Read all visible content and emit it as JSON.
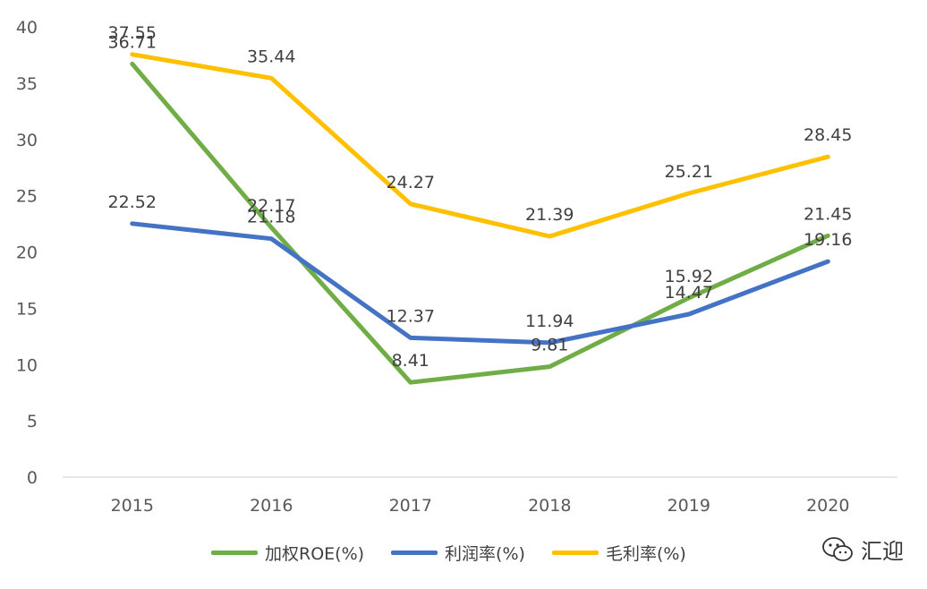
{
  "chart_data": {
    "type": "line",
    "x": [
      "2015",
      "2016",
      "2017",
      "2018",
      "2019",
      "2020"
    ],
    "ylim": [
      0,
      40
    ],
    "yticks": [
      0,
      5,
      10,
      15,
      20,
      25,
      30,
      35,
      40
    ],
    "grid": false,
    "legend_position": "bottom",
    "series": [
      {
        "name": "加权ROE(%)",
        "color": "#70AD47",
        "values": [
          36.71,
          22.17,
          8.41,
          9.81,
          15.92,
          21.45
        ]
      },
      {
        "name": "利润率(%)",
        "color": "#4472C4",
        "values": [
          22.52,
          21.18,
          12.37,
          11.94,
          14.47,
          19.16
        ]
      },
      {
        "name": "毛利率(%)",
        "color": "#FFC000",
        "values": [
          37.55,
          35.44,
          24.27,
          21.39,
          25.21,
          28.45
        ]
      }
    ]
  },
  "watermark": {
    "text": "汇迎",
    "icon": "wechat-icon"
  }
}
